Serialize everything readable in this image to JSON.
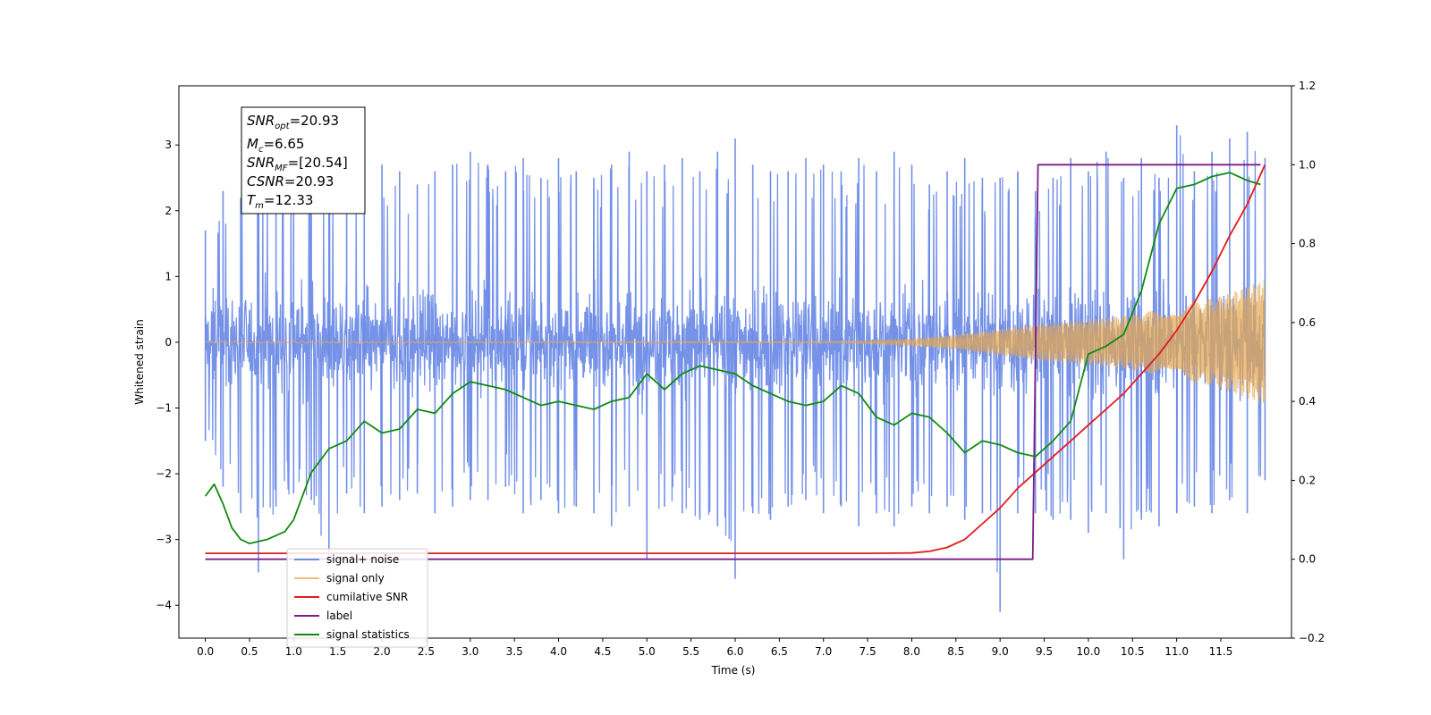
{
  "chart_data": {
    "type": "line",
    "xlabel": "Time (s)",
    "ylabel": "Whitened strain",
    "x_ticks": [
      "0.0",
      "0.5",
      "1.0",
      "1.5",
      "2.0",
      "2.5",
      "3.0",
      "3.5",
      "4.0",
      "4.5",
      "5.0",
      "5.5",
      "6.0",
      "6.5",
      "7.0",
      "7.5",
      "8.0",
      "8.5",
      "9.0",
      "9.5",
      "10.0",
      "10.5",
      "11.0",
      "11.5"
    ],
    "y_ticks": [
      "3",
      "2",
      "1",
      "0",
      "−1",
      "−2",
      "−3",
      "−4"
    ],
    "y2_ticks": [
      "1.2",
      "1.0",
      "0.8",
      "0.6",
      "0.4",
      "0.2",
      "0.0",
      "−0.2"
    ],
    "xlim": [
      -0.3,
      12.3
    ],
    "ylim": [
      -4.5,
      3.9
    ],
    "y2lim": [
      -0.2,
      1.2
    ],
    "grid": false,
    "legend_position": "lower-left",
    "annotation": {
      "snr_opt": {
        "base": "SNR",
        "sub": "opt",
        "value": "=20.93"
      },
      "mc": {
        "base": "M",
        "sub": "c",
        "value": "=6.65"
      },
      "snr_mf": {
        "base": "SNR",
        "sub": "MF",
        "value": "=[20.54]"
      },
      "csnr": {
        "base": "CSNR",
        "sub": "",
        "value": "=20.93"
      },
      "tm": {
        "base": "T",
        "sub": "m",
        "value": "=12.33"
      }
    },
    "series": [
      {
        "name": "signal+ noise",
        "color": "#6a8ae6",
        "axis": "left",
        "x": [
          0,
          0.2,
          0.4,
          0.6,
          0.8,
          1.0,
          1.2,
          1.4,
          1.6,
          1.8,
          2.0,
          2.2,
          2.4,
          2.6,
          2.8,
          3.0,
          3.2,
          3.4,
          3.6,
          3.8,
          4.0,
          4.2,
          4.4,
          4.6,
          4.8,
          5.0,
          5.2,
          5.4,
          5.6,
          5.8,
          6.0,
          6.2,
          6.4,
          6.6,
          6.8,
          7.0,
          7.2,
          7.4,
          7.6,
          7.8,
          8.0,
          8.2,
          8.4,
          8.6,
          8.8,
          9.0,
          9.2,
          9.4,
          9.6,
          9.8,
          10.0,
          10.2,
          10.4,
          10.6,
          10.8,
          11.0,
          11.2,
          11.4,
          11.6,
          11.8,
          12.0
        ],
        "envelope_upper": [
          1.7,
          2.3,
          2.2,
          2.6,
          2.4,
          2.6,
          2.7,
          2.6,
          2.5,
          2.4,
          2.7,
          2.6,
          2.4,
          2.6,
          2.7,
          2.9,
          2.7,
          2.6,
          2.8,
          2.5,
          2.8,
          2.6,
          2.5,
          2.7,
          2.9,
          2.6,
          2.7,
          2.8,
          2.6,
          2.9,
          3.1,
          2.7,
          2.6,
          2.6,
          2.8,
          2.7,
          2.6,
          2.8,
          2.6,
          2.9,
          2.7,
          2.4,
          2.6,
          2.8,
          2.5,
          2.5,
          2.6,
          2.3,
          2.5,
          2.8,
          2.6,
          2.9,
          2.5,
          2.8,
          2.5,
          3.3,
          2.6,
          2.9,
          3.1,
          3.2,
          2.8
        ],
        "envelope_lower": [
          -1.5,
          -2.2,
          -2.6,
          -3.5,
          -2.5,
          -2.3,
          -2.4,
          -3.4,
          -2.3,
          -2.6,
          -2.5,
          -2.4,
          -2.3,
          -2.6,
          -2.5,
          -2.4,
          -2.4,
          -2.2,
          -2.6,
          -2.4,
          -2.6,
          -2.5,
          -2.6,
          -2.8,
          -2.5,
          -3.3,
          -2.5,
          -2.6,
          -2.7,
          -2.8,
          -3.6,
          -2.6,
          -2.7,
          -2.5,
          -2.4,
          -2.6,
          -2.5,
          -2.8,
          -2.6,
          -2.8,
          -2.5,
          -2.6,
          -2.5,
          -2.7,
          -2.6,
          -4.1,
          -2.6,
          -2.6,
          -2.7,
          -2.7,
          -2.9,
          -2.6,
          -3.3,
          -2.7,
          -2.8,
          -2.6,
          -2.5,
          -2.6,
          -2.4,
          -2.6,
          -2.1
        ]
      },
      {
        "name": "signal only",
        "color": "#e8a84d",
        "axis": "left",
        "x": [
          0,
          1,
          2,
          3,
          4,
          5,
          6,
          7,
          7.5,
          8.0,
          8.5,
          9.0,
          9.5,
          10.0,
          10.5,
          11.0,
          11.5,
          12.0
        ],
        "amplitude": [
          0.01,
          0.01,
          0.01,
          0.01,
          0.01,
          0.01,
          0.01,
          0.01,
          0.02,
          0.05,
          0.11,
          0.2,
          0.29,
          0.34,
          0.42,
          0.55,
          0.7,
          0.95
        ]
      },
      {
        "name": "cumilative SNR",
        "color": "#e41a1c",
        "axis": "right",
        "x": [
          0,
          1,
          2,
          3,
          4,
          5,
          6,
          7,
          7.5,
          8.0,
          8.2,
          8.4,
          8.6,
          8.8,
          9.0,
          9.2,
          9.4,
          9.6,
          9.8,
          10.0,
          10.2,
          10.4,
          10.6,
          10.8,
          11.0,
          11.2,
          11.4,
          11.6,
          11.8,
          12.0
        ],
        "values": [
          0.015,
          0.015,
          0.015,
          0.015,
          0.015,
          0.015,
          0.015,
          0.015,
          0.015,
          0.016,
          0.02,
          0.03,
          0.05,
          0.09,
          0.13,
          0.18,
          0.22,
          0.26,
          0.3,
          0.34,
          0.38,
          0.42,
          0.47,
          0.52,
          0.58,
          0.65,
          0.73,
          0.82,
          0.9,
          1.0
        ]
      },
      {
        "name": "label",
        "color": "#7b1c87",
        "axis": "right",
        "x": [
          0,
          9.37,
          9.43,
          11.95
        ],
        "values": [
          0,
          0,
          1.0,
          1.0
        ]
      },
      {
        "name": "signal statistics",
        "color": "#118a11",
        "axis": "right",
        "x": [
          0,
          0.1,
          0.2,
          0.3,
          0.4,
          0.5,
          0.6,
          0.7,
          0.8,
          0.9,
          1.0,
          1.2,
          1.4,
          1.6,
          1.8,
          2.0,
          2.2,
          2.4,
          2.6,
          2.8,
          3.0,
          3.2,
          3.4,
          3.6,
          3.8,
          4.0,
          4.2,
          4.4,
          4.6,
          4.8,
          5.0,
          5.2,
          5.4,
          5.6,
          5.8,
          6.0,
          6.2,
          6.4,
          6.6,
          6.8,
          7.0,
          7.2,
          7.4,
          7.6,
          7.8,
          8.0,
          8.2,
          8.4,
          8.6,
          8.8,
          9.0,
          9.2,
          9.4,
          9.6,
          9.8,
          10.0,
          10.2,
          10.4,
          10.6,
          10.8,
          11.0,
          11.2,
          11.4,
          11.6,
          11.8,
          11.95
        ],
        "values": [
          0.16,
          0.19,
          0.14,
          0.08,
          0.05,
          0.04,
          0.045,
          0.05,
          0.06,
          0.07,
          0.1,
          0.22,
          0.28,
          0.3,
          0.35,
          0.32,
          0.33,
          0.38,
          0.37,
          0.42,
          0.45,
          0.44,
          0.43,
          0.41,
          0.39,
          0.4,
          0.39,
          0.38,
          0.4,
          0.41,
          0.47,
          0.43,
          0.47,
          0.49,
          0.48,
          0.47,
          0.44,
          0.42,
          0.4,
          0.39,
          0.4,
          0.44,
          0.42,
          0.36,
          0.34,
          0.37,
          0.36,
          0.32,
          0.27,
          0.3,
          0.29,
          0.27,
          0.26,
          0.3,
          0.35,
          0.52,
          0.54,
          0.57,
          0.68,
          0.85,
          0.94,
          0.95,
          0.97,
          0.98,
          0.96,
          0.95
        ]
      }
    ]
  }
}
